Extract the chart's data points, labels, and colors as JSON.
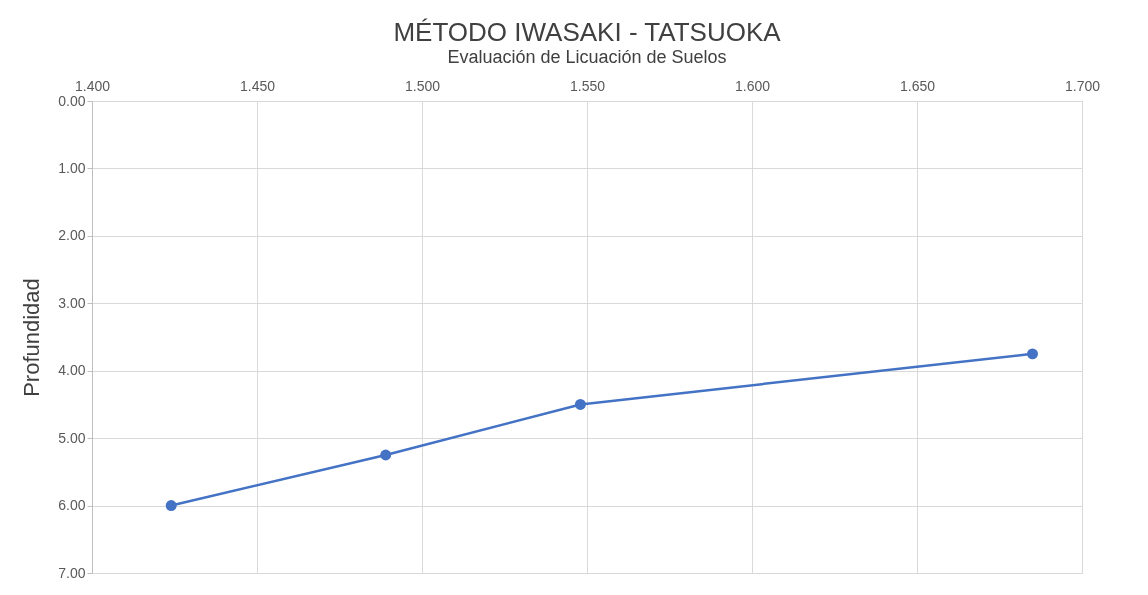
{
  "chart_data": {
    "type": "line",
    "title": "MÉTODO IWASAKI - TATSUOKA",
    "subtitle": "Evaluación de Licuación de Suelos",
    "ylabel": "Profundidad",
    "series": [
      {
        "color": "#4472c4",
        "x": [
          1.424,
          1.489,
          1.548,
          1.685
        ],
        "values": [
          6.0,
          5.25,
          4.5,
          3.75
        ]
      }
    ],
    "xlim": [
      1.4,
      1.7
    ],
    "xticks": [
      {
        "value": 1.4,
        "label": "1.400"
      },
      {
        "value": 1.45,
        "label": "1.450"
      },
      {
        "value": 1.5,
        "label": "1.500"
      },
      {
        "value": 1.55,
        "label": "1.550"
      },
      {
        "value": 1.6,
        "label": "1.600"
      },
      {
        "value": 1.65,
        "label": "1.650"
      },
      {
        "value": 1.7,
        "label": "1.700"
      }
    ],
    "ylim": [
      7,
      0
    ],
    "yticks": [
      {
        "value": 0,
        "label": "0.00"
      },
      {
        "value": 1,
        "label": "1.00"
      },
      {
        "value": 2,
        "label": "2.00"
      },
      {
        "value": 3,
        "label": "3.00"
      },
      {
        "value": 4,
        "label": "4.00"
      },
      {
        "value": 5,
        "label": "5.00"
      },
      {
        "value": 6,
        "label": "6.00"
      },
      {
        "value": 7,
        "label": "7.00"
      }
    ],
    "grid": true,
    "marker": "circle",
    "line_style": "solid"
  }
}
